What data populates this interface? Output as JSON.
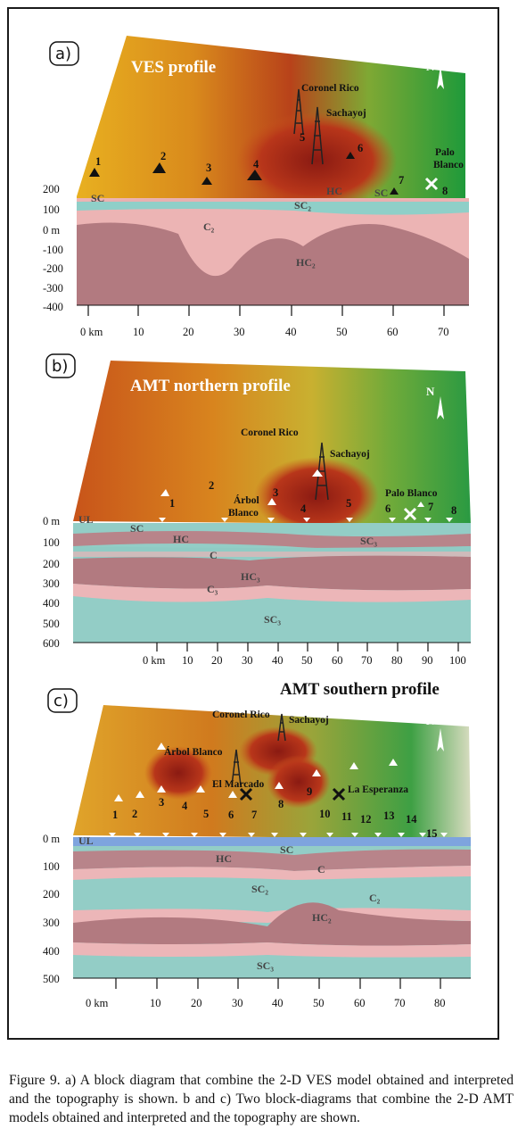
{
  "caption": "Figure 9. a) A block diagram that combine the 2-D VES model obtained and interpreted and the topography is shown. b and c) Two block-diagrams that combine the 2-D AMT models obtained and interpreted and the topography are shown.",
  "north_arrow_label": "N",
  "panels": [
    {
      "id": "a",
      "label": "a)",
      "title": "VES profile",
      "places": [
        "Coronel Rico",
        "Sachayoj",
        "Palo",
        "Blanco"
      ],
      "stations": [
        "1",
        "2",
        "3",
        "4",
        "5",
        "6",
        "7",
        "8"
      ],
      "layers": [
        "SC",
        "HC",
        "SC",
        "SC₂",
        "C₂",
        "HC₂"
      ],
      "depth_ticks": [
        "200",
        "100",
        "0 m",
        "-100",
        "-200",
        "-300",
        "-400"
      ],
      "km_ticks": [
        "0 km",
        "10",
        "20",
        "30",
        "40",
        "50",
        "60",
        "70"
      ]
    },
    {
      "id": "b",
      "label": "b)",
      "title": "AMT northern profile",
      "places": [
        "Coronel Rico",
        "Sachayoj",
        "Árbol",
        "Blanco",
        "Palo Blanco"
      ],
      "stations": [
        "1",
        "2",
        "3",
        "4",
        "5",
        "6",
        "7",
        "8"
      ],
      "layers": [
        "UL",
        "SC",
        "HC",
        "SC₃",
        "C",
        "HC₃",
        "C₃",
        "SC₃"
      ],
      "depth_ticks": [
        "0 m",
        "100",
        "200",
        "300",
        "400",
        "500",
        "600"
      ],
      "km_ticks": [
        "0 km",
        "10",
        "20",
        "30",
        "40",
        "50",
        "60",
        "70",
        "80",
        "90",
        "100"
      ]
    },
    {
      "id": "c",
      "label": "c)",
      "title": "AMT southern profile",
      "places": [
        "Coronel Rico",
        "Sachayoj",
        "Árbol Blanco",
        "El Marcado",
        "La Esperanza"
      ],
      "stations": [
        "1",
        "2",
        "3",
        "4",
        "5",
        "6",
        "7",
        "8",
        "9",
        "10",
        "11",
        "12",
        "13",
        "14",
        "15"
      ],
      "layers": [
        "UL",
        "SC",
        "HC",
        "C",
        "SC₂",
        "C₂",
        "HC₂",
        "SC₃"
      ],
      "depth_ticks": [
        "0 m",
        "100",
        "200",
        "300",
        "400",
        "500"
      ],
      "km_ticks": [
        "0 km",
        "10",
        "20",
        "30",
        "40",
        "50",
        "60",
        "70",
        "80"
      ]
    }
  ]
}
